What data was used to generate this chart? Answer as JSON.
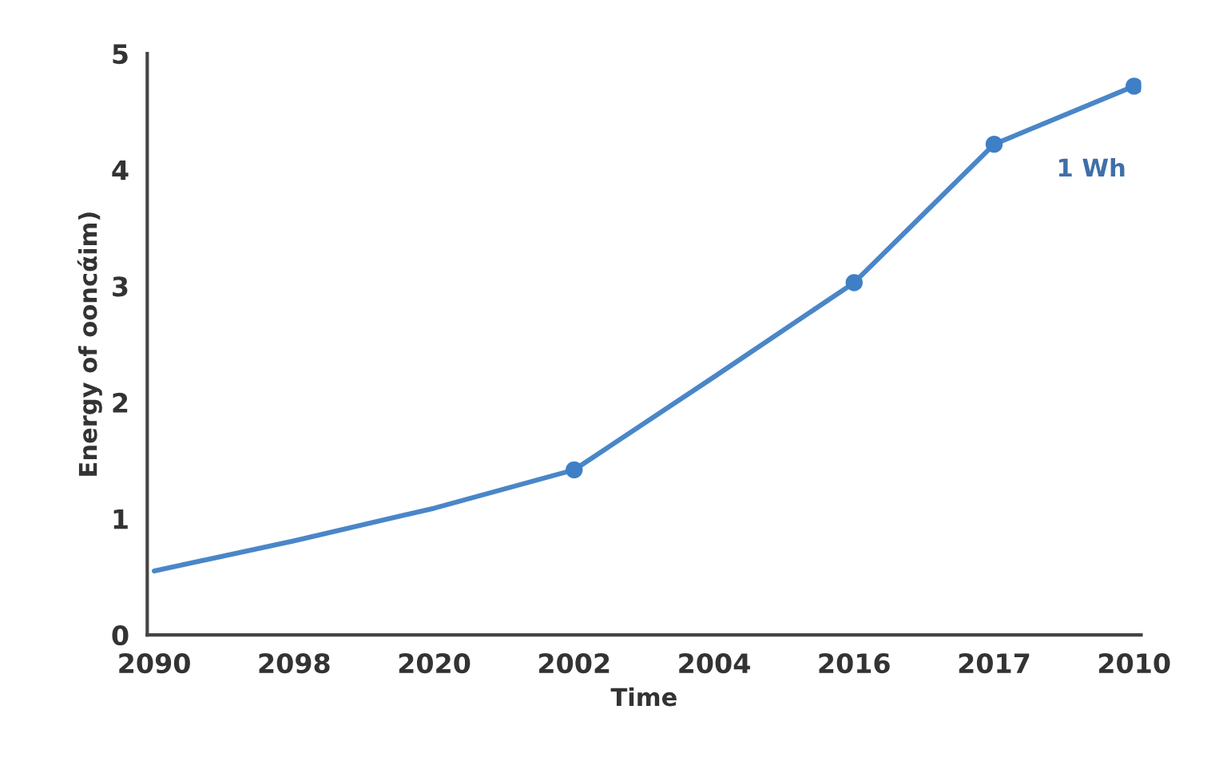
{
  "chart_data": {
    "type": "line",
    "xlabel": "Time",
    "ylabel": "Energy of ooncάim)",
    "categories": [
      "2090",
      "2098",
      "2020",
      "2002",
      "2004",
      "2016",
      "2017",
      "2010"
    ],
    "series": [
      {
        "color": "#4a86c8",
        "values": [
          0.55,
          0.81,
          1.09,
          1.42,
          2.22,
          3.03,
          4.22,
          4.72
        ]
      },
      {
        "type": "scatter",
        "color": "#3f7fc6",
        "values": [
          null,
          null,
          null,
          1.42,
          null,
          3.03,
          4.22,
          4.72
        ]
      }
    ],
    "ylim": [
      0,
      5
    ],
    "yticks": [
      0,
      1,
      2,
      3,
      4,
      5
    ],
    "grid": false,
    "legend": false,
    "annotations": [
      "1 Wh"
    ]
  }
}
